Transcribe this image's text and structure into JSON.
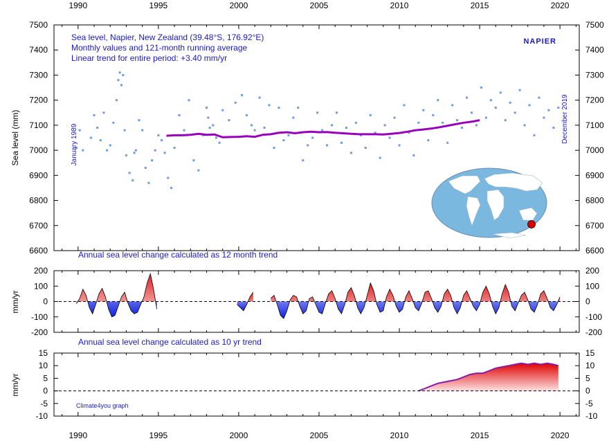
{
  "colors": {
    "monthly_points": "#6b9be0",
    "running_average": "#9900bb",
    "positive_fill": "#e03030",
    "negative_fill": "#2030e0",
    "text_blue": "#1a1acc",
    "ocean": "#7ab8e0"
  },
  "x_ticks": [
    "1990",
    "1995",
    "2000",
    "2005",
    "2010",
    "2015",
    "2020"
  ],
  "chart_data": [
    {
      "type": "scatter",
      "title": "Sea level, Napier, New Zealand (39.48°S, 176.92°E)",
      "subtitle": "Monthly values and 121-month running average",
      "note": "Linear trend for entire period: +3.40 mm/yr",
      "station_label": "NAPIER",
      "start_label": "January 1989",
      "end_label": "December 2019",
      "ylabel": "Sea level (mm)",
      "xlim": [
        1988.5,
        2021.2
      ],
      "ylim": [
        6600,
        7500
      ],
      "yticks": [
        "7500",
        "7400",
        "7300",
        "7200",
        "7100",
        "7000",
        "6900",
        "6800",
        "6700",
        "6600"
      ],
      "grid": false,
      "series": [
        {
          "name": "",
          "style": "points",
          "x": [
            1989.9,
            1990.1,
            1990.3,
            1990.8,
            1991.0,
            1991.2,
            1991.4,
            1991.6,
            1991.8,
            1992.0,
            1992.2,
            1992.4,
            1992.5,
            1992.6,
            1992.7,
            1992.8,
            1992.9,
            1993.0,
            1993.2,
            1993.4,
            1993.5,
            1993.6,
            1993.8,
            1994.0,
            1994.2,
            1994.4,
            1994.6,
            1994.8,
            1995.0,
            1995.2,
            1995.4,
            1995.6,
            1995.8,
            1996.0,
            1996.3,
            1996.6,
            1996.9,
            1997.2,
            1997.5,
            1997.8,
            1998.0,
            1998.1,
            1998.2,
            1998.4,
            1998.6,
            1998.8,
            1999.0,
            1999.4,
            1999.8,
            2000.2,
            2000.5,
            2000.8,
            2001.0,
            2001.3,
            2001.6,
            2001.9,
            2002.2,
            2002.5,
            2002.8,
            2003.1,
            2003.4,
            2003.7,
            2004.0,
            2004.3,
            2004.6,
            2004.9,
            2005.2,
            2005.5,
            2005.8,
            2006.1,
            2006.4,
            2006.7,
            2007.0,
            2007.3,
            2007.6,
            2007.9,
            2008.2,
            2008.5,
            2008.8,
            2009.1,
            2009.4,
            2009.7,
            2010.0,
            2010.3,
            2010.6,
            2010.9,
            2011.2,
            2011.5,
            2011.8,
            2012.1,
            2012.4,
            2012.7,
            2013.0,
            2013.3,
            2013.6,
            2013.9,
            2014.2,
            2014.5,
            2014.8,
            2015.1,
            2015.4,
            2015.7,
            2016.0,
            2016.3,
            2016.6,
            2016.9,
            2017.2,
            2017.5,
            2017.8,
            2018.1,
            2018.4,
            2018.7,
            2019.0,
            2019.3,
            2019.6,
            2019.9
          ],
          "y": [
            7010,
            7080,
            7000,
            7050,
            7140,
            7090,
            7040,
            7150,
            7000,
            7020,
            7110,
            7200,
            7280,
            7310,
            7260,
            7300,
            7080,
            6980,
            6910,
            6880,
            6990,
            7000,
            7120,
            7080,
            6930,
            6870,
            6960,
            7000,
            7060,
            7040,
            6990,
            6890,
            6850,
            7010,
            7140,
            7080,
            7200,
            6960,
            6920,
            7060,
            7170,
            7130,
            7090,
            7100,
            7050,
            7030,
            7160,
            7120,
            7190,
            7220,
            7140,
            7100,
            7080,
            7210,
            7090,
            7180,
            7010,
            7170,
            7040,
            7060,
            7130,
            7170,
            6960,
            7020,
            7050,
            7150,
            7080,
            7020,
            7100,
            7150,
            7030,
            7090,
            6990,
            7110,
            7060,
            7010,
            7140,
            7070,
            6970,
            7100,
            7050,
            7130,
            7020,
            7180,
            7070,
            6980,
            7110,
            7160,
            7040,
            7140,
            7200,
            7110,
            7030,
            7180,
            7120,
            7090,
            7210,
            7150,
            7100,
            7250,
            7130,
            7200,
            7170,
            7230,
            7120,
            7190,
            7150,
            7240,
            7100,
            7180,
            7060,
            7210,
            7130,
            7160,
            7090,
            7170
          ]
        },
        {
          "name": "",
          "style": "line",
          "x": [
            1995.5,
            1996,
            1996.5,
            1997,
            1997.5,
            1998,
            1998.5,
            1999,
            1999.5,
            2000,
            2000.5,
            2001,
            2001.5,
            2002,
            2002.5,
            2003,
            2003.5,
            2004,
            2004.5,
            2005,
            2005.5,
            2006,
            2006.5,
            2007,
            2007.5,
            2008,
            2008.5,
            2009,
            2009.5,
            2010,
            2010.5,
            2011,
            2011.5,
            2012,
            2012.5,
            2013,
            2013.5,
            2014,
            2014.5,
            2015
          ],
          "y": [
            7058,
            7060,
            7060,
            7062,
            7066,
            7062,
            7063,
            7052,
            7053,
            7054,
            7056,
            7054,
            7062,
            7064,
            7070,
            7072,
            7068,
            7072,
            7074,
            7072,
            7073,
            7070,
            7068,
            7066,
            7064,
            7064,
            7064,
            7063,
            7066,
            7069,
            7074,
            7080,
            7083,
            7087,
            7092,
            7098,
            7104,
            7110,
            7114,
            7120
          ]
        }
      ]
    },
    {
      "type": "area",
      "title": "Annual sea level change calculated as 12 month trend",
      "ylabel": "mm/yr",
      "xlim": [
        1988.5,
        2021.2
      ],
      "ylim": [
        -200,
        200
      ],
      "yticks": [
        "200",
        "100",
        "0",
        "-100",
        "-200"
      ],
      "segments": [
        {
          "x": [
            1989.9,
            1990.1,
            1990.3,
            1990.5,
            1990.7,
            1990.9,
            1991.1,
            1991.3,
            1991.5,
            1991.7,
            1991.9,
            1992.1,
            1992.3,
            1992.5,
            1992.7,
            1992.9,
            1993.1,
            1993.3,
            1993.5,
            1993.7,
            1993.9,
            1994.1,
            1994.3,
            1994.5,
            1994.7,
            1994.9
          ],
          "y": [
            -15,
            20,
            80,
            40,
            -40,
            -80,
            -20,
            50,
            85,
            30,
            -50,
            -100,
            -90,
            -30,
            30,
            60,
            -10,
            -60,
            -80,
            -70,
            -20,
            30,
            120,
            180,
            80,
            -50
          ]
        },
        {
          "x": [
            1999.9,
            2000.1,
            2000.3,
            2000.5,
            2000.7,
            2000.9
          ],
          "y": [
            -20,
            -40,
            -60,
            -20,
            30,
            60
          ]
        },
        {
          "x": [
            2002.0,
            2002.2,
            2002.4,
            2002.6,
            2002.8,
            2003.0,
            2003.2,
            2003.4,
            2003.6,
            2003.8,
            2004.0,
            2004.2,
            2004.4,
            2004.6,
            2004.8,
            2005.0,
            2005.2,
            2005.4,
            2005.6,
            2005.8,
            2006.0,
            2006.2,
            2006.4,
            2006.6,
            2006.8,
            2007.0,
            2007.2,
            2007.4,
            2007.6,
            2007.8,
            2008.0,
            2008.2,
            2008.4,
            2008.6,
            2008.8,
            2009.0,
            2009.2,
            2009.4,
            2009.6,
            2009.8,
            2010.0,
            2010.2,
            2010.4,
            2010.6,
            2010.8,
            2011.0,
            2011.2,
            2011.4,
            2011.6,
            2011.8,
            2012.0,
            2012.2,
            2012.4,
            2012.6,
            2012.8,
            2013.0,
            2013.2,
            2013.4,
            2013.6,
            2013.8,
            2014.0,
            2014.2,
            2014.4,
            2014.6,
            2014.8,
            2015.0,
            2015.2,
            2015.4,
            2015.6,
            2015.8,
            2016.0,
            2016.2,
            2016.4,
            2016.6,
            2016.8,
            2017.0,
            2017.2,
            2017.4,
            2017.6,
            2017.8,
            2018.0,
            2018.2,
            2018.4,
            2018.6,
            2018.8,
            2019.0,
            2019.2,
            2019.4,
            2019.6,
            2019.8,
            2020.0
          ],
          "y": [
            20,
            40,
            -20,
            -90,
            -110,
            -60,
            10,
            40,
            30,
            -30,
            -80,
            -60,
            20,
            30,
            -20,
            -70,
            -80,
            -10,
            50,
            70,
            20,
            -50,
            -80,
            -20,
            60,
            90,
            40,
            -40,
            -80,
            -40,
            40,
            120,
            70,
            -20,
            -70,
            -60,
            30,
            80,
            40,
            -30,
            -70,
            -50,
            30,
            70,
            20,
            -40,
            -60,
            -10,
            60,
            70,
            20,
            -40,
            -70,
            -30,
            50,
            80,
            40,
            -40,
            -80,
            -40,
            40,
            70,
            20,
            -30,
            -60,
            -20,
            60,
            100,
            50,
            -30,
            -80,
            -40,
            50,
            110,
            60,
            -30,
            -60,
            -10,
            40,
            60,
            10,
            -50,
            -70,
            -20,
            50,
            70,
            20,
            -40,
            -60,
            -20,
            30
          ]
        }
      ]
    },
    {
      "type": "area",
      "title": "Annual sea level change calculated as 10 yr trend",
      "ylabel": "mm/yr",
      "annotation": "Climate4you graph",
      "xlim": [
        1988.5,
        2021.2
      ],
      "ylim": [
        -10,
        15
      ],
      "yticks": [
        "15",
        "10",
        "5",
        "0",
        "-5",
        "-10"
      ],
      "segments": [
        {
          "x": [
            2011.2,
            2011.6,
            2012.0,
            2012.4,
            2012.8,
            2013.2,
            2013.6,
            2014.0,
            2014.4,
            2014.8,
            2015.2,
            2015.6,
            2016.0,
            2016.4,
            2016.8,
            2017.2,
            2017.6,
            2018.0,
            2018.4,
            2018.8,
            2019.2,
            2019.6,
            2019.9
          ],
          "y": [
            0,
            1,
            2,
            3,
            3.5,
            4,
            4.5,
            5.5,
            6.5,
            7,
            7,
            8,
            9,
            9.5,
            10,
            10.5,
            11,
            10.5,
            11,
            10.5,
            11,
            10.5,
            10
          ]
        }
      ]
    }
  ]
}
